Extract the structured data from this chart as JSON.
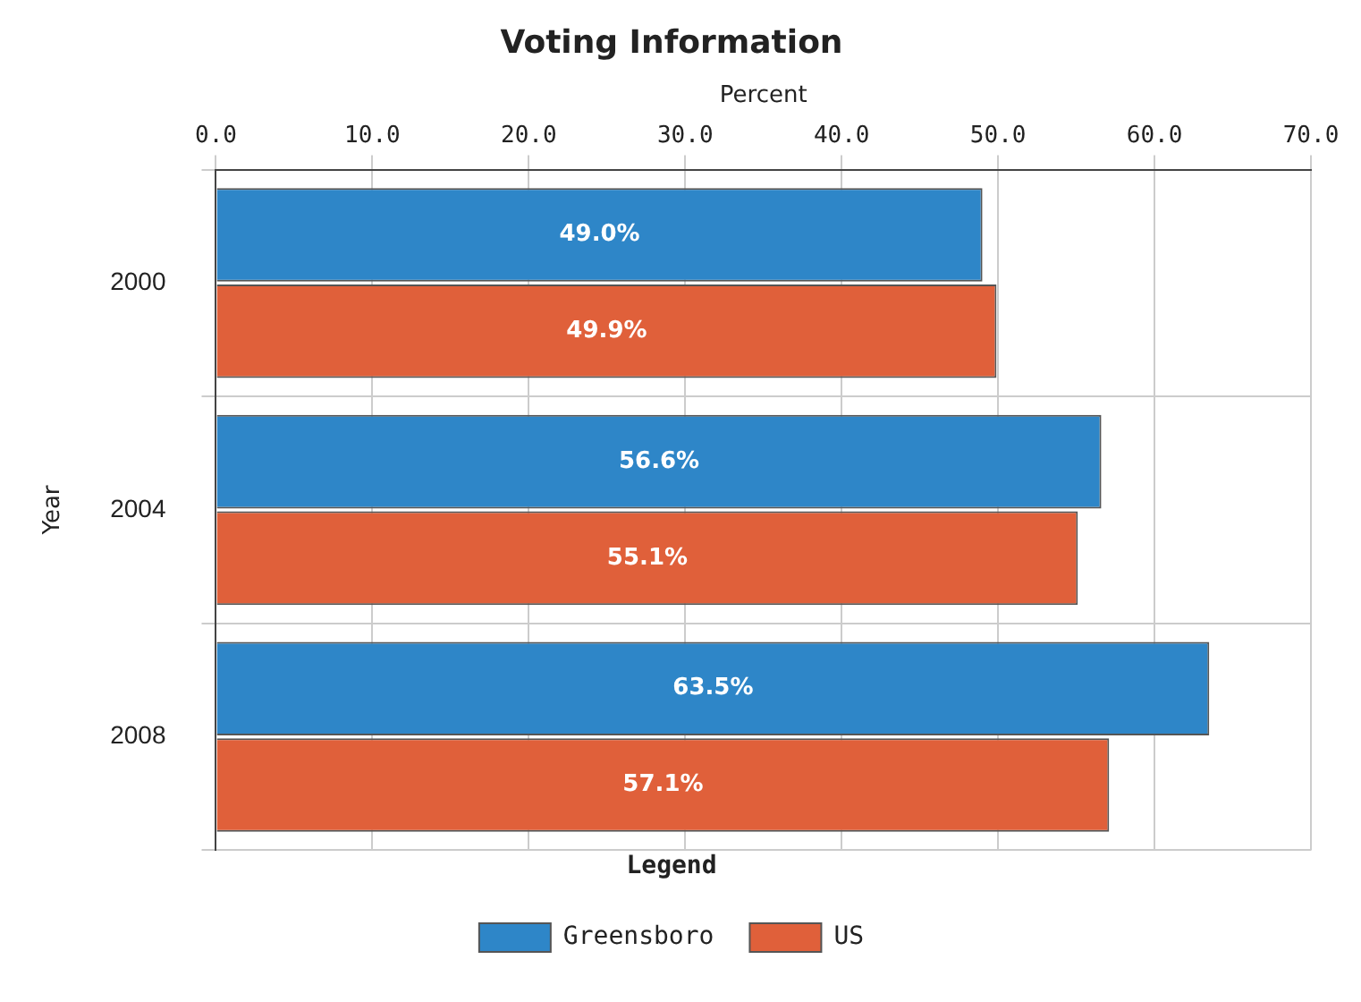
{
  "chart_data": {
    "type": "bar",
    "orientation": "horizontal",
    "title": "Voting Information",
    "xlabel": "Percent",
    "ylabel": "Year",
    "legend_title": "Legend",
    "categories": [
      "2000",
      "2004",
      "2008"
    ],
    "series": [
      {
        "name": "Greensboro",
        "color": "#2e86c8",
        "values": [
          49.0,
          56.6,
          63.5
        ],
        "value_labels": [
          "49.0%",
          "56.6%",
          "63.5%"
        ]
      },
      {
        "name": "US",
        "color": "#e0603a",
        "values": [
          49.9,
          55.1,
          57.1
        ],
        "value_labels": [
          "49.9%",
          "55.1%",
          "57.1%"
        ]
      }
    ],
    "xlim": [
      0,
      70
    ],
    "xticks": [
      {
        "value": 0,
        "label": "0.0"
      },
      {
        "value": 10,
        "label": "10.0"
      },
      {
        "value": 20,
        "label": "20.0"
      },
      {
        "value": 30,
        "label": "30.0"
      },
      {
        "value": 40,
        "label": "40.0"
      },
      {
        "value": 50,
        "label": "50.0"
      },
      {
        "value": 60,
        "label": "60.0"
      },
      {
        "value": 70,
        "label": "70.0"
      }
    ],
    "grid": true,
    "legend": "bottom"
  }
}
